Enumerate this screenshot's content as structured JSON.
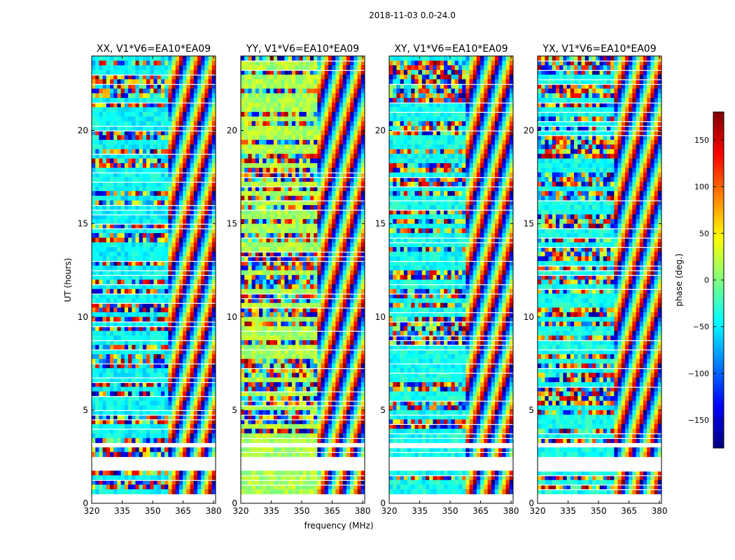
{
  "chart_data": {
    "type": "heatmap",
    "title": "2018-11-03 0.0-24.0",
    "xlabel": "frequency (MHz)",
    "ylabel": "UT (hours)",
    "xlim": [
      320,
      381
    ],
    "ylim": [
      0,
      24
    ],
    "xticks": [
      "320",
      "335",
      "350",
      "365",
      "380"
    ],
    "yticks": [
      "0",
      "5",
      "10",
      "15",
      "20"
    ],
    "panels": [
      {
        "title": "XX, V1*V6=EA10*EA09",
        "base_phase": -45
      },
      {
        "title": "YY, V1*V6=EA10*EA09",
        "base_phase": 15
      },
      {
        "title": "XY, V1*V6=EA10*EA09",
        "base_phase": -40
      },
      {
        "title": "YX, V1*V6=EA10*EA09",
        "base_phase": -40
      }
    ],
    "colorbar": {
      "label": "phase (deg.)",
      "range": [
        -180,
        180
      ],
      "ticks": [
        "150",
        "100",
        "50",
        "0",
        "−50",
        "−100",
        "−150"
      ],
      "colormap": "jet"
    }
  },
  "colors": {
    "jet": [
      "#00007f",
      "#0000ff",
      "#007fff",
      "#00ffff",
      "#7fff7f",
      "#ffff00",
      "#ff7f00",
      "#ff0000",
      "#7f0000"
    ],
    "gap": "#ffffff",
    "frame": "#000000"
  }
}
